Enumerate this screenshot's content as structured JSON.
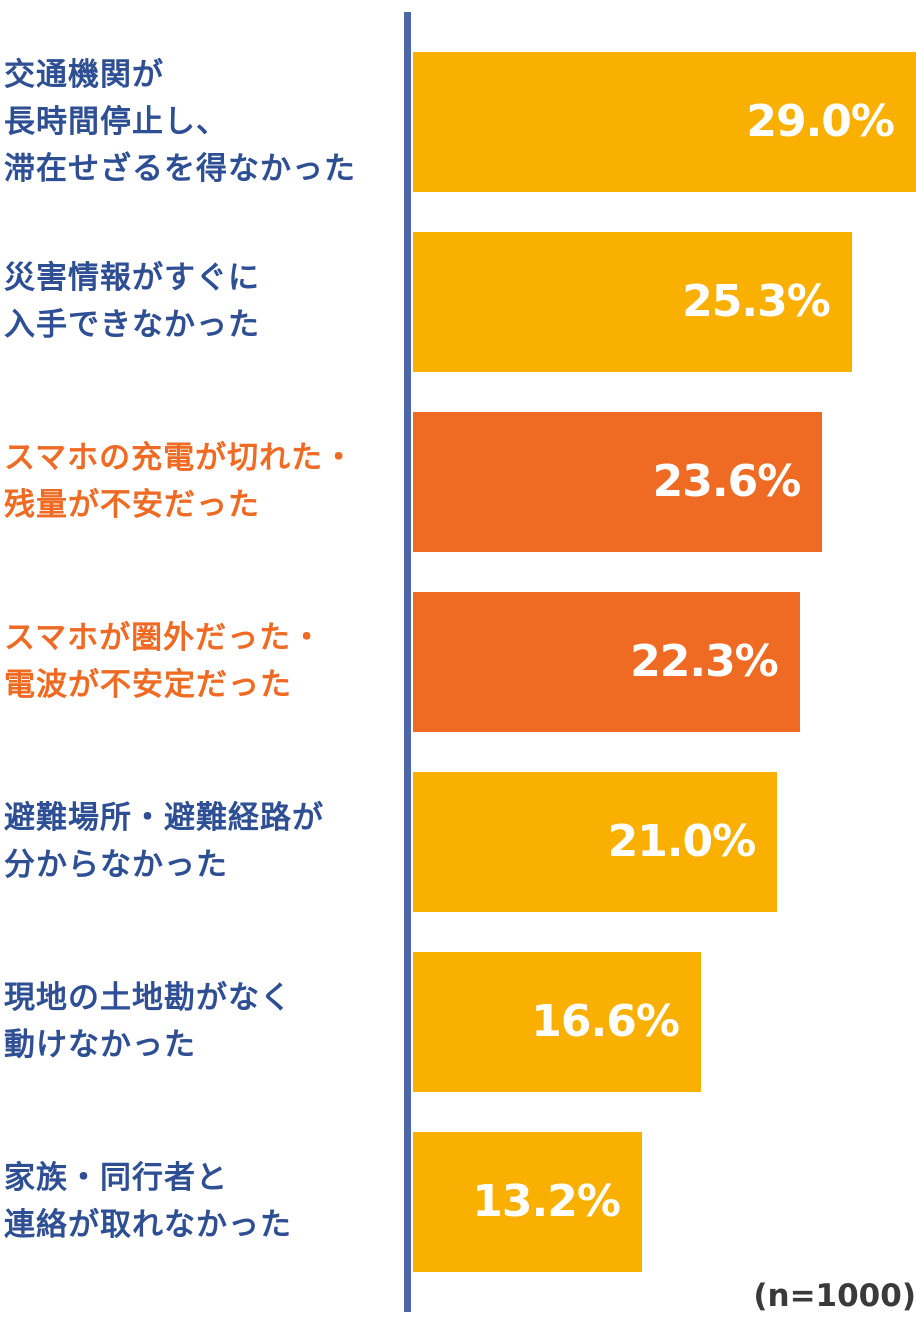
{
  "chart_data": {
    "type": "bar",
    "orientation": "horizontal",
    "categories": [
      "交通機関が\n長時間停止し、\n滞在せざるを得なかった",
      "災害情報がすぐに\n入手できなかった",
      "スマホの充電が切れた・\n残量が不安だった",
      "スマホが圏外だった・\n電波が不安定だった",
      "避難場所・避難経路が\n分からなかった",
      "現地の土地勘がなく\n動けなかった",
      "家族・同行者と\n連絡が取れなかった"
    ],
    "values": [
      29.0,
      25.3,
      23.6,
      22.3,
      21.0,
      16.6,
      13.2
    ],
    "value_labels": [
      "29.0%",
      "25.3%",
      "23.6%",
      "22.3%",
      "21.0%",
      "16.6%",
      "13.2%"
    ],
    "highlighted": [
      false,
      false,
      true,
      true,
      false,
      false,
      false
    ],
    "xlim": [
      0,
      29.0
    ],
    "grid": false,
    "note": "(n=1000)"
  },
  "colors": {
    "bar_default": "#f9b000",
    "bar_highlight": "#ef6a23",
    "label_default": "#2e4f93",
    "label_highlight": "#ef6a23",
    "axis": "#4a67a8"
  }
}
